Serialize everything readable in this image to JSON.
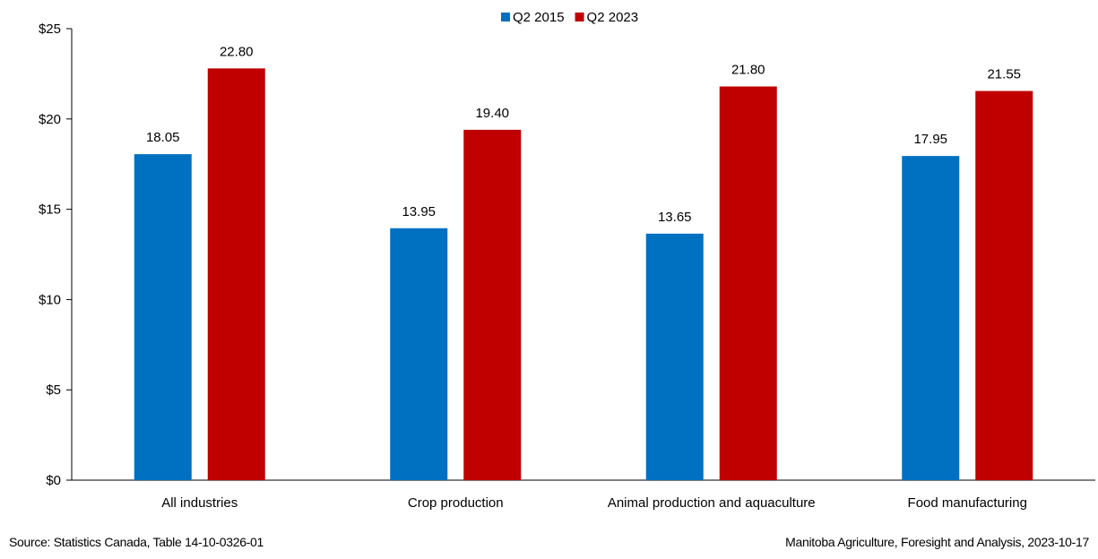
{
  "chart_data": {
    "type": "bar",
    "title": "",
    "xlabel": "",
    "ylabel": "",
    "categories": [
      "All industries",
      "Crop production",
      "Animal production and aquaculture",
      "Food manufacturing"
    ],
    "series": [
      {
        "name": "Q2 2015",
        "color": "#0070C0",
        "values": [
          18.05,
          13.95,
          13.65,
          17.95
        ]
      },
      {
        "name": "Q2 2023",
        "color": "#C00000",
        "values": [
          22.8,
          19.4,
          21.8,
          21.55
        ]
      }
    ],
    "data_labels": [
      [
        "18.05",
        "13.95",
        "13.65",
        "17.95"
      ],
      [
        "22.80",
        "19.40",
        "21.80",
        "21.55"
      ]
    ],
    "ylim": [
      0,
      25
    ],
    "yticks": [
      0,
      5,
      10,
      15,
      20,
      25
    ],
    "ytick_labels": [
      "$0",
      "$5",
      "$10",
      "$15",
      "$20",
      "$25"
    ],
    "grid": false,
    "legend_position": "top-center"
  },
  "footer": {
    "source": "Source: Statistics Canada, Table 14-10-0326-01",
    "credit": "Manitoba Agriculture, Foresight and Analysis, 2023-10-17"
  }
}
